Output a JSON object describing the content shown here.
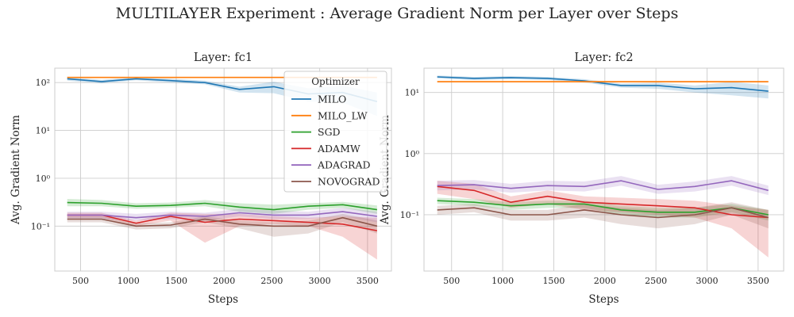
{
  "figure": {
    "title": "MULTILAYER Experiment : Average Gradient Norm per Layer over Steps",
    "legend_title": "Optimizer"
  },
  "colors": {
    "MILO": "#1f77b4",
    "MILO_LW": "#ff7f0e",
    "SGD": "#2ca02c",
    "ADAMW": "#d62728",
    "ADAGRAD": "#9467bd",
    "NOVOGRAD": "#8c564b"
  },
  "chart_data": [
    {
      "type": "line",
      "title": "Layer: fc1",
      "xlabel": "Steps",
      "ylabel": "Avg. Gradient Norm",
      "yscale": "log",
      "xlim": [
        230,
        3750
      ],
      "ylim": [
        0.0115,
        200
      ],
      "xticks": [
        500,
        1000,
        1500,
        2000,
        2500,
        3000,
        3500
      ],
      "yticks": [
        {
          "value": 0.1,
          "label": "10⁻¹"
        },
        {
          "value": 1,
          "label": "10⁰"
        },
        {
          "value": 10,
          "label": "10¹"
        },
        {
          "value": 100,
          "label": "10²"
        }
      ],
      "grid": true,
      "legend": "top-right",
      "x": [
        360,
        720,
        1080,
        1440,
        1800,
        2160,
        2520,
        2880,
        3240,
        3600
      ],
      "series": [
        {
          "name": "MILO",
          "values": [
            120,
            105,
            120,
            110,
            100,
            72,
            82,
            58,
            62,
            40
          ],
          "lower": [
            110,
            96,
            112,
            100,
            92,
            62,
            60,
            40,
            38,
            20
          ],
          "upper": [
            130,
            114,
            130,
            120,
            110,
            82,
            104,
            76,
            86,
            62
          ]
        },
        {
          "name": "MILO_LW",
          "values": [
            128,
            128,
            128,
            128,
            128,
            128,
            128,
            128,
            128,
            128
          ],
          "lower": [
            124,
            124,
            124,
            124,
            124,
            124,
            124,
            124,
            124,
            124
          ],
          "upper": [
            132,
            132,
            132,
            132,
            132,
            132,
            132,
            132,
            132,
            132
          ]
        },
        {
          "name": "SGD",
          "values": [
            0.31,
            0.3,
            0.26,
            0.27,
            0.3,
            0.25,
            0.22,
            0.26,
            0.28,
            0.22
          ],
          "lower": [
            0.26,
            0.26,
            0.23,
            0.24,
            0.26,
            0.2,
            0.18,
            0.22,
            0.24,
            0.18
          ],
          "upper": [
            0.37,
            0.35,
            0.3,
            0.31,
            0.35,
            0.3,
            0.28,
            0.3,
            0.32,
            0.27
          ]
        },
        {
          "name": "ADAMW",
          "values": [
            0.17,
            0.17,
            0.115,
            0.16,
            0.12,
            0.14,
            0.13,
            0.12,
            0.11,
            0.08
          ],
          "lower": [
            0.15,
            0.15,
            0.1,
            0.13,
            0.045,
            0.1,
            0.11,
            0.1,
            0.06,
            0.02
          ],
          "upper": [
            0.19,
            0.19,
            0.13,
            0.19,
            0.18,
            0.18,
            0.16,
            0.15,
            0.16,
            0.15
          ]
        },
        {
          "name": "ADAGRAD",
          "values": [
            0.17,
            0.17,
            0.15,
            0.17,
            0.16,
            0.19,
            0.17,
            0.17,
            0.2,
            0.16
          ],
          "lower": [
            0.14,
            0.14,
            0.13,
            0.14,
            0.13,
            0.16,
            0.14,
            0.14,
            0.16,
            0.12
          ],
          "upper": [
            0.2,
            0.2,
            0.18,
            0.2,
            0.19,
            0.23,
            0.21,
            0.2,
            0.24,
            0.2
          ]
        },
        {
          "name": "NOVOGRAD",
          "values": [
            0.14,
            0.14,
            0.1,
            0.105,
            0.14,
            0.11,
            0.1,
            0.1,
            0.15,
            0.1
          ],
          "lower": [
            0.12,
            0.12,
            0.085,
            0.09,
            0.12,
            0.09,
            0.06,
            0.07,
            0.12,
            0.07
          ],
          "upper": [
            0.16,
            0.16,
            0.115,
            0.12,
            0.16,
            0.13,
            0.12,
            0.13,
            0.18,
            0.13
          ]
        }
      ]
    },
    {
      "type": "line",
      "title": "Layer: fc2",
      "xlabel": "Steps",
      "ylabel": "Avg. Gradient Norm",
      "yscale": "log",
      "xlim": [
        230,
        3750
      ],
      "ylim": [
        0.012,
        25
      ],
      "xticks": [
        500,
        1000,
        1500,
        2000,
        2500,
        3000,
        3500
      ],
      "yticks": [
        {
          "value": 0.1,
          "label": "10⁻¹"
        },
        {
          "value": 1,
          "label": "10⁰"
        },
        {
          "value": 10,
          "label": "10¹"
        }
      ],
      "grid": true,
      "x": [
        360,
        720,
        1080,
        1440,
        1800,
        2160,
        2520,
        2880,
        3240,
        3600
      ],
      "series": [
        {
          "name": "MILO",
          "values": [
            18,
            17,
            17.5,
            17,
            15.5,
            13,
            13,
            11.5,
            12,
            10.5
          ],
          "lower": [
            17,
            16,
            16.5,
            16,
            14.5,
            12,
            11.5,
            10,
            9,
            8
          ],
          "upper": [
            19,
            18,
            18.5,
            18,
            16.5,
            14,
            14.5,
            13,
            15,
            13
          ]
        },
        {
          "name": "MILO_LW",
          "values": [
            15,
            15,
            15,
            15,
            15,
            15,
            15,
            15,
            15,
            15
          ],
          "lower": [
            14.5,
            14.5,
            14.5,
            14.5,
            14.5,
            14.5,
            14.5,
            14.5,
            14.5,
            14.5
          ],
          "upper": [
            15.5,
            15.5,
            15.5,
            15.5,
            15.5,
            15.5,
            15.5,
            15.5,
            15.5,
            15.5
          ]
        },
        {
          "name": "SGD",
          "values": [
            0.17,
            0.16,
            0.14,
            0.15,
            0.15,
            0.12,
            0.11,
            0.11,
            0.13,
            0.1
          ],
          "lower": [
            0.15,
            0.14,
            0.12,
            0.13,
            0.13,
            0.1,
            0.09,
            0.09,
            0.11,
            0.08
          ],
          "upper": [
            0.19,
            0.18,
            0.16,
            0.17,
            0.17,
            0.14,
            0.13,
            0.13,
            0.15,
            0.12
          ]
        },
        {
          "name": "ADAMW",
          "values": [
            0.29,
            0.25,
            0.16,
            0.2,
            0.16,
            0.15,
            0.14,
            0.13,
            0.1,
            0.09
          ],
          "lower": [
            0.22,
            0.18,
            0.13,
            0.15,
            0.12,
            0.11,
            0.1,
            0.09,
            0.06,
            0.02
          ],
          "upper": [
            0.36,
            0.32,
            0.2,
            0.25,
            0.2,
            0.19,
            0.18,
            0.17,
            0.14,
            0.12
          ]
        },
        {
          "name": "ADAGRAD",
          "values": [
            0.3,
            0.31,
            0.27,
            0.3,
            0.29,
            0.36,
            0.26,
            0.29,
            0.36,
            0.25
          ],
          "lower": [
            0.25,
            0.26,
            0.23,
            0.25,
            0.24,
            0.3,
            0.22,
            0.24,
            0.3,
            0.21
          ],
          "upper": [
            0.36,
            0.37,
            0.32,
            0.36,
            0.35,
            0.43,
            0.31,
            0.35,
            0.43,
            0.3
          ]
        },
        {
          "name": "NOVOGRAD",
          "values": [
            0.12,
            0.13,
            0.1,
            0.1,
            0.12,
            0.1,
            0.09,
            0.1,
            0.13,
            0.09
          ],
          "lower": [
            0.1,
            0.11,
            0.08,
            0.08,
            0.09,
            0.07,
            0.06,
            0.07,
            0.1,
            0.06
          ],
          "upper": [
            0.14,
            0.15,
            0.12,
            0.12,
            0.15,
            0.13,
            0.12,
            0.13,
            0.16,
            0.12
          ]
        }
      ]
    }
  ]
}
